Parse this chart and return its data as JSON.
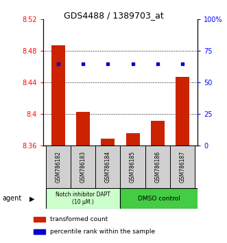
{
  "title": "GDS4488 / 1389703_at",
  "categories": [
    "GSM786182",
    "GSM786183",
    "GSM786184",
    "GSM786185",
    "GSM786186",
    "GSM786187"
  ],
  "bar_values": [
    8.487,
    8.403,
    8.369,
    8.376,
    8.392,
    8.447
  ],
  "percentile_values": [
    65,
    65,
    65,
    65,
    65,
    65
  ],
  "bar_color": "#cc2200",
  "dot_color": "#0000cc",
  "ylim_left": [
    8.36,
    8.52
  ],
  "ylim_right": [
    0,
    100
  ],
  "yticks_left": [
    8.36,
    8.4,
    8.44,
    8.48,
    8.52
  ],
  "ytick_labels_left": [
    "8.36",
    "8.4",
    "8.44",
    "8.48",
    "8.52"
  ],
  "yticks_right": [
    0,
    25,
    50,
    75,
    100
  ],
  "ytick_labels_right": [
    "0",
    "25",
    "50",
    "75",
    "100%"
  ],
  "group1_label": "Notch inhibitor DAPT\n(10 μM.)",
  "group2_label": "DMSO control",
  "group1_color": "#ccffcc",
  "group2_color": "#44cc44",
  "legend_bar_label": "transformed count",
  "legend_dot_label": "percentile rank within the sample",
  "agent_label": "agent",
  "bar_baseline": 8.36,
  "bar_width": 0.55,
  "grid_lines": [
    8.4,
    8.44,
    8.48
  ],
  "dot_pct": 65
}
